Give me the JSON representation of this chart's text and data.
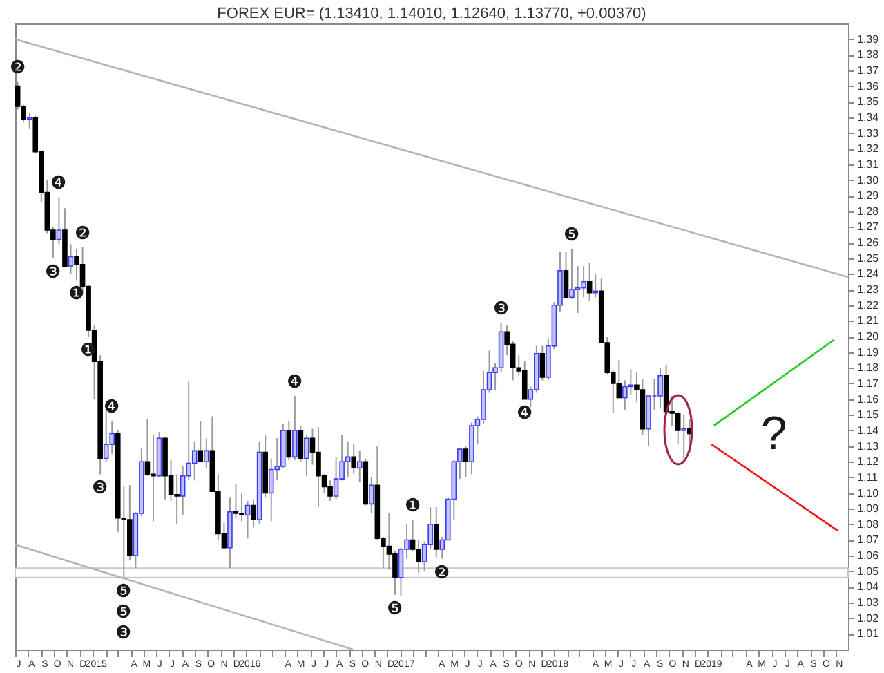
{
  "chart_data": {
    "type": "candlestick",
    "title": "FOREX EUR= (1.13410, 1.14010, 1.12640, 1.13770, +0.00370)",
    "x": [
      "2014-07-07",
      "2014-07-21",
      "2014-08-04",
      "2014-08-18",
      "2014-09-01",
      "2014-09-15",
      "2014-09-29",
      "2014-10-13",
      "2014-10-27",
      "2014-11-10",
      "2014-11-24",
      "2014-12-08",
      "2014-12-22",
      "2015-01-05",
      "2015-01-19",
      "2015-02-02",
      "2015-02-16",
      "2015-03-02",
      "2015-03-16",
      "2015-03-30",
      "2015-04-13",
      "2015-04-27",
      "2015-05-11",
      "2015-05-25",
      "2015-06-08",
      "2015-06-22",
      "2015-07-06",
      "2015-07-20",
      "2015-08-03",
      "2015-08-17",
      "2015-08-31",
      "2015-09-14",
      "2015-09-28",
      "2015-10-12",
      "2015-10-26",
      "2015-11-09",
      "2015-11-23",
      "2015-12-07",
      "2015-12-21",
      "2016-01-04",
      "2016-01-18",
      "2016-02-01",
      "2016-02-15",
      "2016-02-29",
      "2016-03-14",
      "2016-03-28",
      "2016-04-11",
      "2016-04-25",
      "2016-05-09",
      "2016-05-23",
      "2016-06-06",
      "2016-06-20",
      "2016-07-04",
      "2016-07-18",
      "2016-08-01",
      "2016-08-15",
      "2016-08-29",
      "2016-09-12",
      "2016-09-26",
      "2016-10-10",
      "2016-10-24",
      "2016-11-07",
      "2016-11-21",
      "2016-12-05",
      "2016-12-19",
      "2017-01-02",
      "2017-01-16",
      "2017-01-30",
      "2017-02-13",
      "2017-02-27",
      "2017-03-13",
      "2017-03-27",
      "2017-04-10",
      "2017-04-24",
      "2017-05-08",
      "2017-05-22",
      "2017-06-05",
      "2017-06-19",
      "2017-07-03",
      "2017-07-17",
      "2017-07-31",
      "2017-08-14",
      "2017-08-28",
      "2017-09-11",
      "2017-09-25",
      "2017-10-09",
      "2017-10-23",
      "2017-11-06",
      "2017-11-20",
      "2017-12-04",
      "2017-12-18",
      "2018-01-01",
      "2018-01-15",
      "2018-01-29",
      "2018-02-12",
      "2018-02-26",
      "2018-03-12",
      "2018-03-26",
      "2018-04-09",
      "2018-04-23",
      "2018-05-07",
      "2018-05-21",
      "2018-06-04",
      "2018-06-18",
      "2018-07-02",
      "2018-07-16",
      "2018-07-30",
      "2018-08-13",
      "2018-08-27",
      "2018-09-10",
      "2018-09-24",
      "2018-10-08",
      "2018-10-22",
      "2018-11-05",
      "2018-11-19"
    ],
    "ohlc": [
      [
        1.36,
        1.363,
        1.345,
        1.347
      ],
      [
        1.347,
        1.348,
        1.337,
        1.339
      ],
      [
        1.339,
        1.343,
        1.333,
        1.34
      ],
      [
        1.34,
        1.341,
        1.317,
        1.318
      ],
      [
        1.318,
        1.319,
        1.286,
        1.292
      ],
      [
        1.292,
        1.3,
        1.266,
        1.268
      ],
      [
        1.268,
        1.27,
        1.25,
        1.262
      ],
      [
        1.262,
        1.289,
        1.259,
        1.268
      ],
      [
        1.268,
        1.282,
        1.245,
        1.245
      ],
      [
        1.245,
        1.259,
        1.24,
        1.251
      ],
      [
        1.251,
        1.256,
        1.236,
        1.246
      ],
      [
        1.246,
        1.257,
        1.228,
        1.232
      ],
      [
        1.232,
        1.233,
        1.2,
        1.204
      ],
      [
        1.204,
        1.207,
        1.16,
        1.184
      ],
      [
        1.184,
        1.188,
        1.112,
        1.122
      ],
      [
        1.122,
        1.153,
        1.12,
        1.131
      ],
      [
        1.131,
        1.146,
        1.125,
        1.138
      ],
      [
        1.138,
        1.14,
        1.075,
        1.084
      ],
      [
        1.084,
        1.104,
        1.046,
        1.083
      ],
      [
        1.083,
        1.105,
        1.057,
        1.06
      ],
      [
        1.06,
        1.088,
        1.052,
        1.087
      ],
      [
        1.087,
        1.129,
        1.085,
        1.12
      ],
      [
        1.12,
        1.147,
        1.111,
        1.112
      ],
      [
        1.112,
        1.137,
        1.082,
        1.111
      ],
      [
        1.111,
        1.139,
        1.11,
        1.135
      ],
      [
        1.135,
        1.136,
        1.096,
        1.111
      ],
      [
        1.111,
        1.121,
        1.095,
        1.099
      ],
      [
        1.099,
        1.112,
        1.08,
        1.098
      ],
      [
        1.098,
        1.117,
        1.086,
        1.111
      ],
      [
        1.111,
        1.171,
        1.108,
        1.119
      ],
      [
        1.119,
        1.133,
        1.108,
        1.127
      ],
      [
        1.127,
        1.146,
        1.12,
        1.12
      ],
      [
        1.12,
        1.135,
        1.116,
        1.127
      ],
      [
        1.127,
        1.149,
        1.101,
        1.101
      ],
      [
        1.101,
        1.112,
        1.07,
        1.074
      ],
      [
        1.074,
        1.081,
        1.064,
        1.065
      ],
      [
        1.065,
        1.097,
        1.052,
        1.088
      ],
      [
        1.088,
        1.106,
        1.084,
        1.087
      ],
      [
        1.087,
        1.1,
        1.082,
        1.086
      ],
      [
        1.086,
        1.095,
        1.071,
        1.092
      ],
      [
        1.092,
        1.096,
        1.078,
        1.083
      ],
      [
        1.083,
        1.133,
        1.08,
        1.126
      ],
      [
        1.126,
        1.137,
        1.097,
        1.1
      ],
      [
        1.1,
        1.122,
        1.082,
        1.115
      ],
      [
        1.115,
        1.135,
        1.108,
        1.117
      ],
      [
        1.117,
        1.144,
        1.116,
        1.14
      ],
      [
        1.14,
        1.146,
        1.121,
        1.123
      ],
      [
        1.123,
        1.162,
        1.121,
        1.14
      ],
      [
        1.14,
        1.143,
        1.12,
        1.122
      ],
      [
        1.122,
        1.137,
        1.111,
        1.135
      ],
      [
        1.135,
        1.141,
        1.118,
        1.126
      ],
      [
        1.126,
        1.142,
        1.091,
        1.111
      ],
      [
        1.111,
        1.112,
        1.1,
        1.104
      ],
      [
        1.104,
        1.108,
        1.095,
        1.098
      ],
      [
        1.098,
        1.123,
        1.096,
        1.109
      ],
      [
        1.109,
        1.137,
        1.108,
        1.12
      ],
      [
        1.12,
        1.133,
        1.11,
        1.123
      ],
      [
        1.123,
        1.131,
        1.112,
        1.116
      ],
      [
        1.116,
        1.127,
        1.107,
        1.12
      ],
      [
        1.12,
        1.122,
        1.092,
        1.093
      ],
      [
        1.093,
        1.11,
        1.087,
        1.105
      ],
      [
        1.105,
        1.13,
        1.07,
        1.071
      ],
      [
        1.071,
        1.072,
        1.052,
        1.066
      ],
      [
        1.066,
        1.087,
        1.051,
        1.061
      ],
      [
        1.061,
        1.063,
        1.035,
        1.046
      ],
      [
        1.046,
        1.065,
        1.034,
        1.064
      ],
      [
        1.064,
        1.08,
        1.058,
        1.07
      ],
      [
        1.07,
        1.083,
        1.063,
        1.064
      ],
      [
        1.064,
        1.07,
        1.049,
        1.056
      ],
      [
        1.056,
        1.069,
        1.05,
        1.067
      ],
      [
        1.067,
        1.091,
        1.064,
        1.08
      ],
      [
        1.08,
        1.091,
        1.059,
        1.064
      ],
      [
        1.064,
        1.072,
        1.058,
        1.07
      ],
      [
        1.07,
        1.097,
        1.07,
        1.096
      ],
      [
        1.096,
        1.121,
        1.083,
        1.12
      ],
      [
        1.12,
        1.129,
        1.109,
        1.128
      ],
      [
        1.128,
        1.13,
        1.11,
        1.12
      ],
      [
        1.12,
        1.145,
        1.112,
        1.143
      ],
      [
        1.143,
        1.149,
        1.131,
        1.147
      ],
      [
        1.147,
        1.178,
        1.144,
        1.166
      ],
      [
        1.166,
        1.191,
        1.164,
        1.177
      ],
      [
        1.177,
        1.183,
        1.166,
        1.18
      ],
      [
        1.18,
        1.209,
        1.177,
        1.203
      ],
      [
        1.203,
        1.207,
        1.188,
        1.195
      ],
      [
        1.195,
        1.197,
        1.172,
        1.18
      ],
      [
        1.18,
        1.188,
        1.175,
        1.178
      ],
      [
        1.178,
        1.184,
        1.16,
        1.16
      ],
      [
        1.16,
        1.168,
        1.155,
        1.166
      ],
      [
        1.166,
        1.194,
        1.164,
        1.189
      ],
      [
        1.189,
        1.194,
        1.172,
        1.174
      ],
      [
        1.174,
        1.199,
        1.172,
        1.194
      ],
      [
        1.194,
        1.222,
        1.192,
        1.22
      ],
      [
        1.22,
        1.254,
        1.216,
        1.242
      ],
      [
        1.242,
        1.254,
        1.224,
        1.225
      ],
      [
        1.225,
        1.256,
        1.224,
        1.23
      ],
      [
        1.23,
        1.245,
        1.215,
        1.231
      ],
      [
        1.231,
        1.245,
        1.225,
        1.235
      ],
      [
        1.235,
        1.247,
        1.223,
        1.228
      ],
      [
        1.228,
        1.24,
        1.225,
        1.229
      ],
      [
        1.229,
        1.237,
        1.196,
        1.196
      ],
      [
        1.196,
        1.2,
        1.176,
        1.177
      ],
      [
        1.177,
        1.179,
        1.151,
        1.17
      ],
      [
        1.17,
        1.185,
        1.16,
        1.161
      ],
      [
        1.161,
        1.172,
        1.153,
        1.168
      ],
      [
        1.168,
        1.179,
        1.163,
        1.169
      ],
      [
        1.169,
        1.177,
        1.158,
        1.166
      ],
      [
        1.166,
        1.173,
        1.137,
        1.141
      ],
      [
        1.141,
        1.162,
        1.13,
        1.162
      ],
      [
        1.162,
        1.173,
        1.153,
        1.162
      ],
      [
        1.162,
        1.18,
        1.154,
        1.175
      ],
      [
        1.175,
        1.182,
        1.15,
        1.152
      ],
      [
        1.152,
        1.162,
        1.143,
        1.151
      ],
      [
        1.151,
        1.152,
        1.131,
        1.14
      ],
      [
        1.14,
        1.15,
        1.122,
        1.141
      ],
      [
        1.141,
        1.147,
        1.126,
        1.138
      ]
    ],
    "series": [
      {
        "type": "line",
        "x": [
          "2014-07-01",
          "2019-11-30"
        ],
        "values": [
          1.39,
          1.238
        ],
        "color": "#b4b4b4"
      },
      {
        "type": "line",
        "x": [
          "2014-07-01",
          "2016-09-10"
        ],
        "values": [
          1.067,
          1.0
        ],
        "color": "#b4b4b4"
      },
      {
        "type": "line",
        "x": [
          "2019-01-15",
          "2019-10-28"
        ],
        "values": [
          1.143,
          1.198
        ],
        "color": "#22cc22"
      },
      {
        "type": "line",
        "x": [
          "2019-01-10",
          "2019-11-05"
        ],
        "values": [
          1.131,
          1.076
        ],
        "color": "#ee1111"
      }
    ],
    "bands": [
      {
        "axis": "y",
        "from": 1.046,
        "to": 1.052,
        "color": "#c8c8c8"
      }
    ],
    "annotations": [
      {
        "text": "❷",
        "x": "2014-07-07",
        "y": 1.363
      },
      {
        "text": "❹",
        "x": "2014-10-13",
        "y": 1.289
      },
      {
        "text": "❸",
        "x": "2014-09-29",
        "y": 1.25
      },
      {
        "text": "❷",
        "x": "2014-12-08",
        "y": 1.257
      },
      {
        "text": "❶",
        "x": "2014-11-24",
        "y": 1.236
      },
      {
        "text": "❶",
        "x": "2014-12-22",
        "y": 1.2
      },
      {
        "text": "❹",
        "x": "2015-02-16",
        "y": 1.146
      },
      {
        "text": "❸",
        "x": "2015-01-19",
        "y": 1.112
      },
      {
        "text": "❺",
        "x": "2015-03-16",
        "y": 1.046
      },
      {
        "text": "❺",
        "x": "2015-03-16",
        "y": 1.046
      },
      {
        "text": "❸",
        "x": "2015-03-16",
        "y": 1.046
      },
      {
        "text": "❹",
        "x": "2016-04-25",
        "y": 1.162
      },
      {
        "text": "❶",
        "x": "2017-01-30",
        "y": 1.083
      },
      {
        "text": "❷",
        "x": "2017-04-10",
        "y": 1.058
      },
      {
        "text": "❺",
        "x": "2016-12-19",
        "y": 1.035
      },
      {
        "text": "❸",
        "x": "2017-08-28",
        "y": 1.209
      },
      {
        "text": "❹",
        "x": "2017-10-23",
        "y": 1.16
      },
      {
        "text": "❺",
        "x": "2018-02-12",
        "y": 1.256
      },
      "?"
    ],
    "xlim": [
      "2014-07-01",
      "2019-11-30"
    ],
    "ylim": [
      1.0,
      1.4
    ],
    "yticks": [
      1.01,
      1.02,
      1.03,
      1.04,
      1.05,
      1.06,
      1.07,
      1.08,
      1.09,
      {
        "value": 1.1,
        "label": "1.10"
      },
      1.11,
      1.12,
      1.13,
      1.14,
      1.15,
      1.16,
      1.17,
      1.18,
      1.19,
      {
        "value": 1.2,
        "label": "1.20"
      },
      1.21,
      1.22,
      1.23,
      1.24,
      1.25,
      1.26,
      1.27,
      1.28,
      1.29,
      {
        "value": 1.3,
        "label": "1.30"
      },
      1.31,
      1.32,
      1.33,
      1.34,
      1.35,
      1.36,
      1.37,
      1.38,
      1.39
    ],
    "xticks": [
      {
        "value": "2014-07",
        "label": "J"
      },
      {
        "value": "2014-08",
        "label": "A"
      },
      {
        "value": "2014-09",
        "label": "S"
      },
      {
        "value": "2014-10",
        "label": "O"
      },
      {
        "value": "2014-11",
        "label": "N"
      },
      {
        "value": "2014-12",
        "label": "D"
      },
      {
        "value": "2015-01",
        "label": "2015"
      },
      {
        "value": "2015-02",
        "label": null
      },
      {
        "value": "2015-03",
        "label": null
      },
      {
        "value": "2015-04",
        "label": "A"
      },
      {
        "value": "2015-05",
        "label": "M"
      },
      {
        "value": "2015-06",
        "label": "J"
      },
      {
        "value": "2015-07",
        "label": "J"
      },
      {
        "value": "2015-08",
        "label": "A"
      },
      {
        "value": "2015-09",
        "label": "S"
      },
      {
        "value": "2015-10",
        "label": "O"
      },
      {
        "value": "2015-11",
        "label": "N"
      },
      {
        "value": "2015-12",
        "label": "D"
      },
      {
        "value": "2016-01",
        "label": "2016"
      },
      {
        "value": "2016-02",
        "label": null
      },
      {
        "value": "2016-03",
        "label": null
      },
      {
        "value": "2016-04",
        "label": "A"
      },
      {
        "value": "2016-05",
        "label": "M"
      },
      {
        "value": "2016-06",
        "label": "J"
      },
      {
        "value": "2016-07",
        "label": "J"
      },
      {
        "value": "2016-08",
        "label": "A"
      },
      {
        "value": "2016-09",
        "label": "S"
      },
      {
        "value": "2016-10",
        "label": "O"
      },
      {
        "value": "2016-11",
        "label": "N"
      },
      {
        "value": "2016-12",
        "label": "D"
      },
      {
        "value": "2017-01",
        "label": "2017"
      },
      {
        "value": "2017-02",
        "label": null
      },
      {
        "value": "2017-03",
        "label": null
      },
      {
        "value": "2017-04",
        "label": "A"
      },
      {
        "value": "2017-05",
        "label": "M"
      },
      {
        "value": "2017-06",
        "label": "J"
      },
      {
        "value": "2017-07",
        "label": "J"
      },
      {
        "value": "2017-08",
        "label": "A"
      },
      {
        "value": "2017-09",
        "label": "S"
      },
      {
        "value": "2017-10",
        "label": "O"
      },
      {
        "value": "2017-11",
        "label": "N"
      },
      {
        "value": "2017-12",
        "label": "D"
      },
      {
        "value": "2018-01",
        "label": "2018"
      },
      {
        "value": "2018-02",
        "label": null
      },
      {
        "value": "2018-03",
        "label": null
      },
      {
        "value": "2018-04",
        "label": "A"
      },
      {
        "value": "2018-05",
        "label": "M"
      },
      {
        "value": "2018-06",
        "label": "J"
      },
      {
        "value": "2018-07",
        "label": "J"
      },
      {
        "value": "2018-08",
        "label": "A"
      },
      {
        "value": "2018-09",
        "label": "S"
      },
      {
        "value": "2018-10",
        "label": "O"
      },
      {
        "value": "2018-11",
        "label": "N"
      },
      {
        "value": "2018-12",
        "label": "D"
      },
      {
        "value": "2019-01",
        "label": "2019"
      },
      {
        "value": "2019-02",
        "label": null
      },
      {
        "value": "2019-03",
        "label": null
      },
      {
        "value": "2019-04",
        "label": "A"
      },
      {
        "value": "2019-05",
        "label": "M"
      },
      {
        "value": "2019-06",
        "label": "J"
      },
      {
        "value": "2019-07",
        "label": "J"
      },
      {
        "value": "2019-08",
        "label": "A"
      },
      {
        "value": "2019-09",
        "label": "S"
      },
      {
        "value": "2019-10",
        "label": "O"
      },
      {
        "value": "2019-11",
        "label": "N"
      }
    ],
    "grid": false
  }
}
